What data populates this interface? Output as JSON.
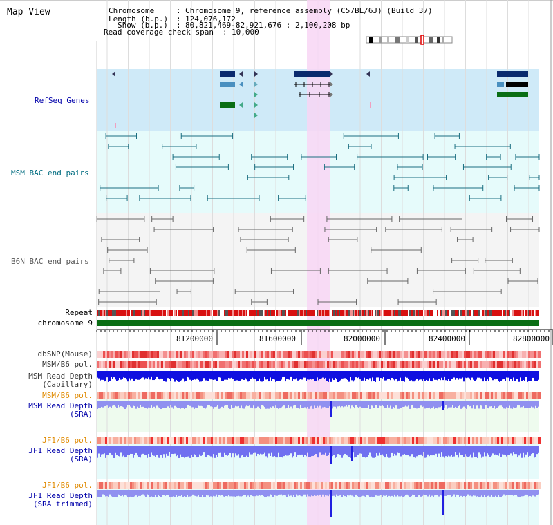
{
  "header": {
    "title": "Map View",
    "chromosome_label": "Chromosome",
    "chromosome_value": "Chromosome 9, reference assembly (C57BL/6J) (Build 37)",
    "length_label": "Length (b.p.)",
    "length_value": "124,076,172",
    "show_label": "Show (b.p.)",
    "show_value": "80,821,469-82,921,676 : 2,100,208 bp",
    "span_label": "Read coverage check span",
    "span_value": "10,000"
  },
  "tracks": {
    "refseq": "RefSeq Genes",
    "msm_bac": "MSM BAC end pairs",
    "b6n_bac": "B6N BAC end pairs",
    "repeat": "Repeat",
    "chromosome": "chromosome 9",
    "dbsnp": "dbSNP(Mouse)",
    "msm_b6_pol_1": "MSM/B6 pol.",
    "msm_depth_cap_1": "MSM Read Depth",
    "msm_depth_cap_2": "(Capillary)",
    "msm_b6_pol_2": "MSM/B6 pol.",
    "msm_depth_sra_1": "MSM Read Depth",
    "msm_depth_sra_2": "(SRA)",
    "jf1_b6_pol_1": "JF1/B6 pol.",
    "jf1_depth_sra_1": "JF1 Read Depth",
    "jf1_depth_sra_2": "(SRA)",
    "jf1_b6_pol_2": "JF1/B6 pol.",
    "jf1_depth_trim_1": "JF1 Read Depth",
    "jf1_depth_trim_2": "(SRA trimmed)"
  },
  "axis": {
    "ticks": [
      "81200000",
      "81600000",
      "82000000",
      "82400000",
      "82800000"
    ]
  },
  "colors": {
    "navy": "#0a2a6e",
    "refseq_bg": "#cfeaf8",
    "msm_bg": "#e6fbfb",
    "b6n_bg": "#f4f4f4",
    "highlight": "#f8d6f4",
    "green": "#0a6e14",
    "msm_label": "#006c80",
    "gray_label": "#555555",
    "orange_label": "#e08a00",
    "blue_label": "#0000aa"
  }
}
